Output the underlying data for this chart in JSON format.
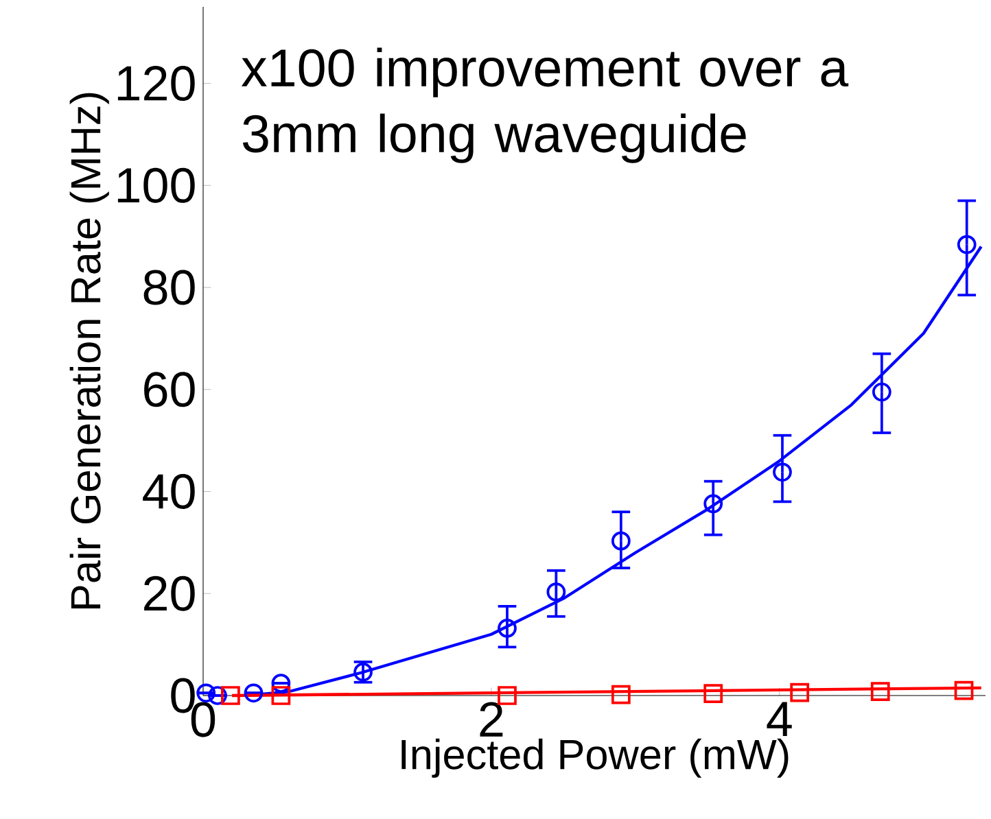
{
  "chart_data": {
    "type": "scatter",
    "xlabel": "Injected Power (mW)",
    "ylabel": "Pair Generation Rate (MHz)",
    "annotations": [
      "x100 improvement over a 3mm long waveguide"
    ],
    "xlim": [
      0,
      5.43
    ],
    "ylim": [
      0,
      135
    ],
    "xticks": [
      0,
      2,
      4
    ],
    "yticks": [
      0,
      20,
      40,
      60,
      80,
      100,
      120
    ],
    "series": [
      {
        "marker": "circle",
        "color": "#0000ff",
        "x": [
          0.02,
          0.1,
          0.35,
          0.54,
          1.11,
          2.11,
          2.45,
          2.9,
          3.54,
          4.02,
          4.71,
          5.3
        ],
        "values": [
          0.5,
          0,
          0.5,
          2.4,
          4.6,
          13.2,
          20.3,
          30.3,
          37.6,
          43.8,
          59.5,
          88.4
        ],
        "errors": [
          null,
          null,
          null,
          null,
          [
            2.6,
            6.6
          ],
          [
            9.5,
            17.5
          ],
          [
            15.5,
            24.5
          ],
          [
            25,
            36
          ],
          [
            31.5,
            42
          ],
          [
            38,
            51
          ],
          [
            51.5,
            67
          ],
          [
            78.5,
            97
          ]
        ]
      },
      {
        "type": "line",
        "marker": "none",
        "color": "#0000ff",
        "x": [
          0.3,
          0.6,
          1.1,
          2,
          2.5,
          3,
          3.5,
          4,
          4.5,
          5,
          5.4
        ],
        "values": [
          0,
          0.8,
          4.5,
          12,
          19,
          28,
          36.5,
          46,
          57,
          71,
          88
        ]
      },
      {
        "type": "scatter",
        "marker": "square",
        "color": "#ff0000",
        "x": [
          0.19,
          0.54,
          2.11,
          2.9,
          3.54,
          4.14,
          4.7,
          5.28
        ],
        "values": [
          0,
          0,
          0,
          0.2,
          0.4,
          0.6,
          0.8,
          1
        ]
      },
      {
        "type": "line",
        "marker": "none",
        "color": "#ff0000",
        "x": [
          0.2,
          5.4
        ],
        "values": [
          0,
          1.5
        ]
      }
    ]
  }
}
